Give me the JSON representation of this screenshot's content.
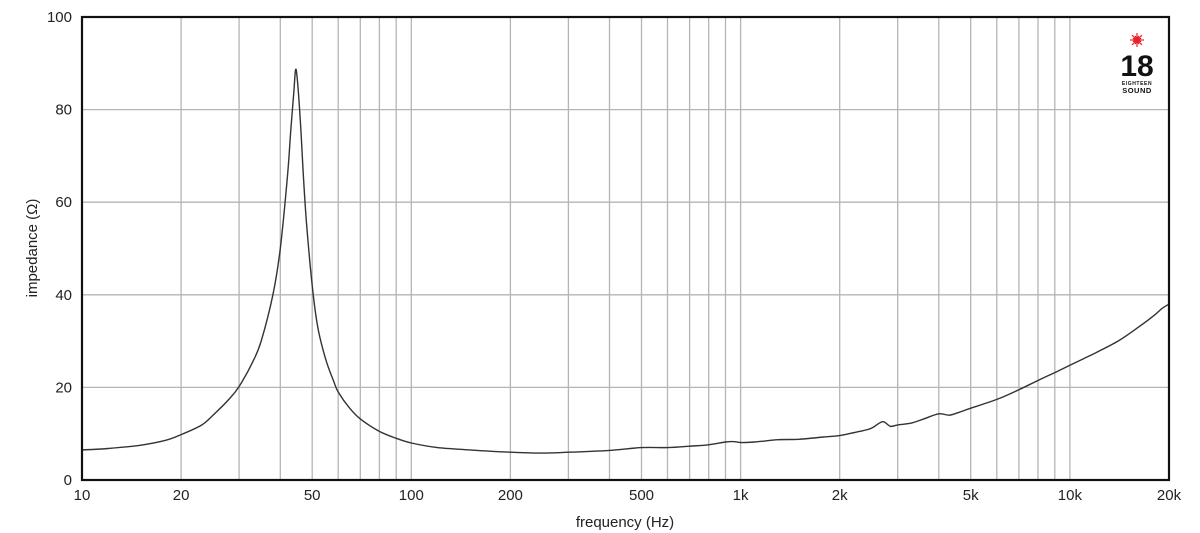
{
  "chart_data": {
    "type": "line",
    "title": "",
    "xlabel": "frequency (Hz)",
    "ylabel": "impedance (Ω)",
    "xscale": "log",
    "xlim": [
      10,
      20000
    ],
    "ylim": [
      0,
      100
    ],
    "grid": true,
    "legend": null,
    "x_ticks": [
      {
        "value": 10,
        "label": "10"
      },
      {
        "value": 20,
        "label": "20"
      },
      {
        "value": 50,
        "label": "50"
      },
      {
        "value": 100,
        "label": "100"
      },
      {
        "value": 200,
        "label": "200"
      },
      {
        "value": 500,
        "label": "500"
      },
      {
        "value": 1000,
        "label": "1k"
      },
      {
        "value": 2000,
        "label": "2k"
      },
      {
        "value": 5000,
        "label": "5k"
      },
      {
        "value": 10000,
        "label": "10k"
      },
      {
        "value": 20000,
        "label": "20k"
      }
    ],
    "x_minor_grid": [
      30,
      40,
      60,
      70,
      80,
      90,
      300,
      400,
      600,
      700,
      800,
      900,
      3000,
      4000,
      6000,
      7000,
      8000,
      9000
    ],
    "y_ticks": [
      {
        "value": 0,
        "label": "0"
      },
      {
        "value": 20,
        "label": "20"
      },
      {
        "value": 40,
        "label": "40"
      },
      {
        "value": 60,
        "label": "60"
      },
      {
        "value": 80,
        "label": "80"
      },
      {
        "value": 100,
        "label": "100"
      }
    ],
    "series": [
      {
        "name": "impedance",
        "color": "#333333",
        "x": [
          10,
          12,
          15,
          18,
          20,
          23,
          25,
          28,
          30,
          33,
          35,
          38,
          40,
          42,
          43,
          44,
          44.5,
          45,
          46,
          47,
          48,
          50,
          52,
          55,
          58,
          60,
          65,
          70,
          80,
          90,
          100,
          120,
          150,
          200,
          250,
          300,
          400,
          500,
          600,
          700,
          800,
          900,
          950,
          1000,
          1100,
          1300,
          1500,
          1800,
          2000,
          2300,
          2500,
          2700,
          2850,
          3000,
          3300,
          3600,
          4000,
          4300,
          4600,
          5000,
          6000,
          7000,
          8000,
          9000,
          10000,
          11000,
          12000,
          14000,
          16000,
          18000,
          19000,
          20000
        ],
        "values": [
          6.5,
          6.8,
          7.5,
          8.6,
          9.8,
          11.8,
          14.0,
          17.5,
          20.2,
          25.5,
          30.0,
          40.0,
          50.0,
          65.0,
          75.0,
          84.0,
          88.5,
          87.0,
          78.0,
          66.0,
          56.0,
          42.0,
          33.0,
          26.0,
          21.5,
          19.0,
          15.5,
          13.2,
          10.5,
          9.0,
          8.0,
          7.0,
          6.5,
          6.0,
          5.8,
          6.0,
          6.4,
          7.0,
          7.0,
          7.3,
          7.6,
          8.2,
          8.3,
          8.1,
          8.2,
          8.7,
          8.8,
          9.3,
          9.6,
          10.5,
          11.2,
          12.6,
          11.6,
          11.9,
          12.3,
          13.2,
          14.3,
          14.0,
          14.6,
          15.5,
          17.4,
          19.5,
          21.5,
          23.2,
          24.8,
          26.2,
          27.5,
          30.0,
          32.8,
          35.5,
          37.0,
          38.0
        ]
      }
    ]
  },
  "logo": {
    "number": "18",
    "line1": "EIGHTEEN",
    "line2": "SOUND",
    "star_color": "#e8202a"
  },
  "colors": {
    "background": "#ffffff",
    "grid": "#b5b5b5",
    "frame": "#111111",
    "curve": "#333333"
  }
}
